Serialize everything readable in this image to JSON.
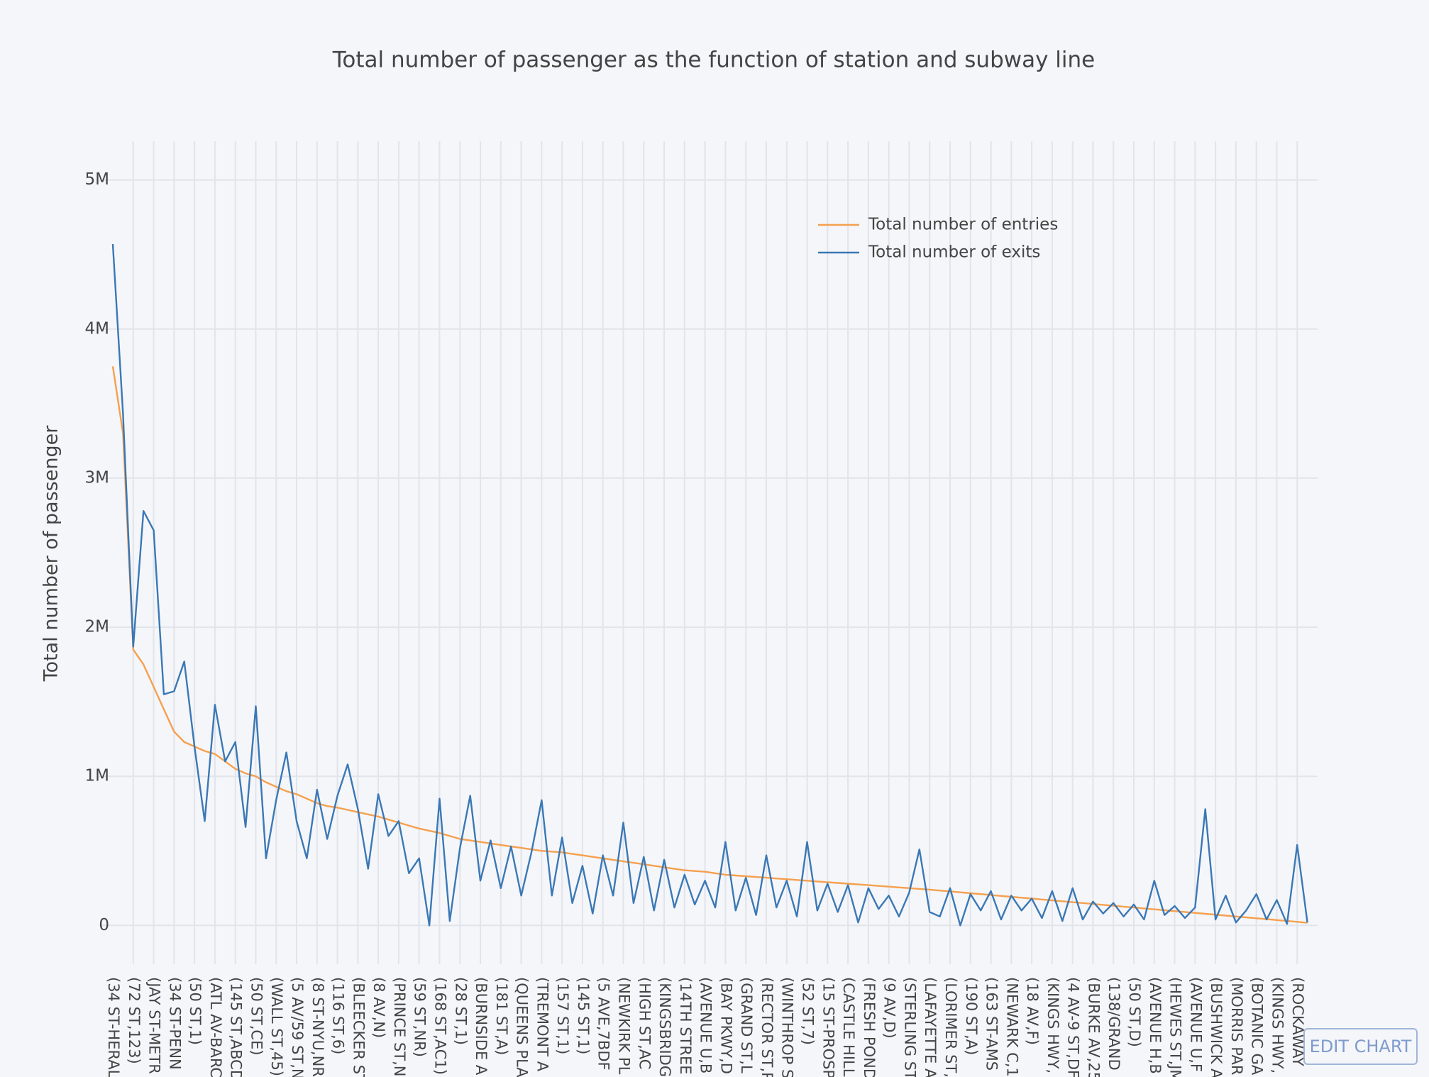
{
  "chart_data": {
    "type": "line",
    "title": "Total number of passenger as the function of station and subway line",
    "ylabel": "Total number of passenger",
    "button": "EDIT CHART",
    "grid": true,
    "legend": "top right",
    "categories": [
      "(34 ST-HERAL",
      null,
      "(72 ST,123)",
      null,
      "(JAY ST-METR",
      null,
      "(34 ST-PENN",
      null,
      "(50 ST,1)",
      null,
      "(ATL AV-BARC",
      null,
      "(145 ST,ABCD",
      null,
      "(50 ST,CE)",
      null,
      "(WALL ST,45)",
      null,
      "(5 AV/59 ST,N",
      null,
      "(8 ST-NYU,NR",
      null,
      "(116 ST,6)",
      null,
      "(BLEECKER ST",
      null,
      "(8 AV,N)",
      null,
      "(PRINCE ST,N",
      null,
      "(59 ST,NR)",
      null,
      "(168 ST,AC1)",
      null,
      "(28 ST,1)",
      null,
      "(BURNSIDE A",
      null,
      "(181 ST,A)",
      null,
      "(QUEENS PLA",
      null,
      "(TREMONT A",
      null,
      "(157 ST,1)",
      null,
      "(145 ST,1)",
      null,
      "(5 AVE,7BDF",
      null,
      "(NEWKIRK PL",
      null,
      "(HIGH ST,AC",
      null,
      "(KINGSBRIDG",
      null,
      "(14TH STREE",
      null,
      "(AVENUE U,B",
      null,
      "(BAY PKWY,D",
      null,
      "(GRAND ST,L",
      null,
      "(RECTOR ST,R",
      null,
      "(WINTHROP S",
      null,
      "(52 ST,7)",
      null,
      "(15 ST-PROSP",
      null,
      "(CASTLE HILL",
      null,
      "(FRESH POND",
      null,
      "(9 AV,D)",
      null,
      "(STERLING ST",
      null,
      "(LAFAYETTE A",
      null,
      "(LORIMER ST,",
      null,
      "(190 ST,A)",
      null,
      "(163 ST-AMS",
      null,
      "(NEWARK C,1",
      null,
      "(18 AV,F)",
      null,
      "(KINGS HWY,",
      null,
      "(4 AV-9 ST,DF",
      null,
      "(BURKE AV,25",
      null,
      "(138/GRAND",
      null,
      "(50 ST,D)",
      null,
      "(AVENUE H,B",
      null,
      "(HEWES ST,JM",
      null,
      "(AVENUE U,F",
      null,
      "(BUSHWICK A",
      null,
      "(MORRIS PAR",
      null,
      "(BOTANIC GA",
      null,
      "(KINGS HWY,",
      null,
      "(ROCKAWAY",
      null
    ],
    "series": [
      {
        "name": "Total number of entries",
        "color": "#f5a04e",
        "values": [
          3750000,
          3300000,
          1850000,
          1750000,
          1600000,
          1450000,
          1300000,
          1230000,
          1200000,
          1170000,
          1150000,
          1100000,
          1050000,
          1020000,
          1000000,
          960000,
          930000,
          900000,
          880000,
          850000,
          820000,
          800000,
          790000,
          775000,
          760000,
          745000,
          730000,
          710000,
          690000,
          670000,
          650000,
          635000,
          620000,
          600000,
          580000,
          570000,
          560000,
          550000,
          540000,
          530000,
          520000,
          510000,
          500000,
          495000,
          490000,
          480000,
          470000,
          460000,
          450000,
          440000,
          430000,
          420000,
          410000,
          400000,
          390000,
          380000,
          370000,
          365000,
          360000,
          350000,
          340000,
          335000,
          330000,
          325000,
          320000,
          315000,
          310000,
          305000,
          300000,
          295000,
          290000,
          285000,
          280000,
          275000,
          270000,
          265000,
          260000,
          255000,
          250000,
          245000,
          240000,
          234000,
          228000,
          222000,
          216000,
          210000,
          204000,
          198000,
          192000,
          186000,
          180000,
          174000,
          168000,
          162000,
          156000,
          150000,
          144000,
          138000,
          132000,
          126000,
          120000,
          114000,
          108000,
          102000,
          96000,
          90000,
          84000,
          78000,
          72000,
          66000,
          60000,
          54000,
          48000,
          42000,
          36000,
          30000,
          24000,
          18000
        ]
      },
      {
        "name": "Total number of exits",
        "color": "#3a78b5",
        "values": [
          4570000,
          3430000,
          1870000,
          2780000,
          2650000,
          1550000,
          1570000,
          1770000,
          1200000,
          700000,
          1480000,
          1100000,
          1230000,
          660000,
          1470000,
          450000,
          840000,
          1160000,
          700000,
          450000,
          910000,
          580000,
          870000,
          1080000,
          780000,
          380000,
          880000,
          600000,
          700000,
          350000,
          450000,
          0,
          850000,
          30000,
          520000,
          870000,
          300000,
          570000,
          250000,
          530000,
          200000,
          490000,
          840000,
          200000,
          590000,
          150000,
          400000,
          80000,
          470000,
          200000,
          690000,
          150000,
          460000,
          100000,
          440000,
          120000,
          340000,
          140000,
          300000,
          120000,
          560000,
          100000,
          320000,
          70000,
          470000,
          120000,
          300000,
          60000,
          560000,
          100000,
          280000,
          90000,
          270000,
          20000,
          250000,
          110000,
          200000,
          60000,
          220000,
          510000,
          90000,
          60000,
          250000,
          0,
          210000,
          100000,
          230000,
          40000,
          200000,
          100000,
          180000,
          50000,
          230000,
          30000,
          250000,
          40000,
          160000,
          80000,
          150000,
          60000,
          140000,
          40000,
          300000,
          70000,
          130000,
          50000,
          120000,
          780000,
          40000,
          200000,
          20000,
          100000,
          210000,
          40000,
          170000,
          10000,
          540000,
          20000
        ]
      }
    ],
    "ylim": [
      -260000,
      5260000
    ],
    "yticks": [
      0,
      {
        "value": 1000000,
        "label": "1M"
      },
      {
        "value": 2000000,
        "label": "2M"
      },
      {
        "value": 3000000,
        "label": "3M"
      },
      {
        "value": 4000000,
        "label": "4M"
      },
      {
        "value": 5000000,
        "label": "5M"
      }
    ]
  }
}
